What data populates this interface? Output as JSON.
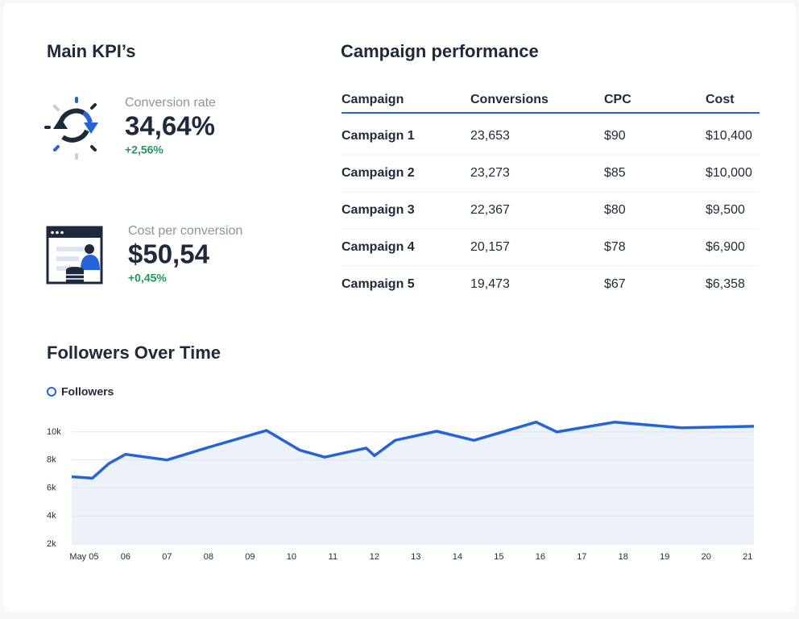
{
  "kpi_section": {
    "title": "Main KPI’s",
    "kpis": [
      {
        "label": "Conversion rate",
        "value": "34,64%",
        "change": "+2,56%"
      },
      {
        "label": "Cost per conversion",
        "value": "$50,54",
        "change": "+0,45%"
      }
    ]
  },
  "table": {
    "title": "Campaign performance",
    "headers": [
      "Campaign",
      "Conversions",
      "CPC",
      "Cost"
    ],
    "rows": [
      [
        "Campaign 1",
        "23,653",
        "$90",
        "$10,400"
      ],
      [
        "Campaign 2",
        "23,273",
        "$85",
        "$10,000"
      ],
      [
        "Campaign 3",
        "22,367",
        "$80",
        "$9,500"
      ],
      [
        "Campaign 4",
        "20,157",
        "$78",
        "$6,900"
      ],
      [
        "Campaign 5",
        "19,473",
        "$67",
        "$6,358"
      ]
    ]
  },
  "chart_data": {
    "type": "line",
    "title": "Followers Over Time",
    "x": [
      4.7,
      5.2,
      5.6,
      6.0,
      7.0,
      8.0,
      9.4,
      10.2,
      10.8,
      11.8,
      12.0,
      12.5,
      13.5,
      14.4,
      15.9,
      16.4,
      17.8,
      19.4,
      21.15
    ],
    "series": [
      {
        "name": "Followers",
        "color": "#2563d9",
        "values": [
          6800,
          6700,
          7750,
          8400,
          8000,
          8900,
          10100,
          8700,
          8200,
          8850,
          8300,
          9400,
          10050,
          9400,
          10700,
          10000,
          10700,
          10300,
          10400
        ]
      }
    ],
    "area_fill": "#edf1f9",
    "xlim": [
      4.7,
      21.15
    ],
    "xticks": [
      {
        "value": 5,
        "label": "May 05"
      },
      {
        "value": 6,
        "label": "06"
      },
      {
        "value": 7,
        "label": "07"
      },
      {
        "value": 8,
        "label": "08"
      },
      {
        "value": 9,
        "label": "09"
      },
      10,
      11,
      12,
      13,
      14,
      15,
      16,
      17,
      18,
      19,
      20,
      21
    ],
    "ylim": [
      2000,
      11200
    ],
    "yticks": [
      {
        "value": 2000,
        "label": "2k"
      },
      {
        "value": 4000,
        "label": "4k"
      },
      {
        "value": 6000,
        "label": "6k"
      },
      {
        "value": 8000,
        "label": "8k"
      },
      {
        "value": 10000,
        "label": "10k"
      }
    ],
    "grid": true
  }
}
